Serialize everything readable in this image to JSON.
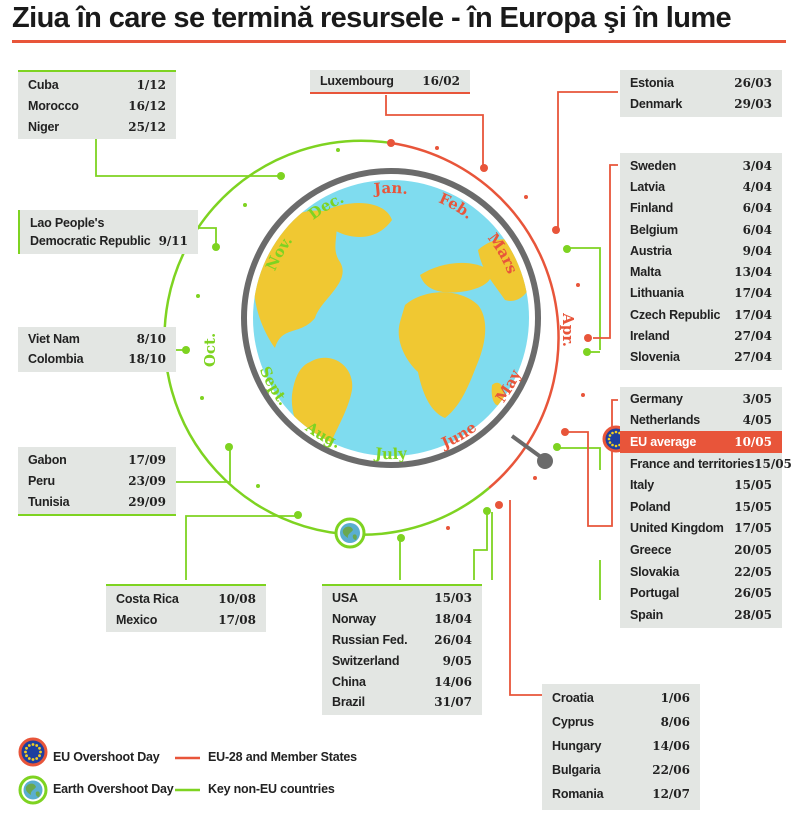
{
  "title": "Ziua în care se termină resursele - în Europa şi în lume",
  "colors": {
    "eu": "#e8553a",
    "non_eu": "#7ed321",
    "ocean": "#7fdcef",
    "land": "#f0c832",
    "panel": "#e3e6e3"
  },
  "months": [
    {
      "label": "Jan.",
      "side": "eu"
    },
    {
      "label": "Feb.",
      "side": "eu"
    },
    {
      "label": "Mars",
      "side": "eu"
    },
    {
      "label": "Apr.",
      "side": "eu"
    },
    {
      "label": "May",
      "side": "eu"
    },
    {
      "label": "June",
      "side": "eu"
    },
    {
      "label": "July",
      "side": "non_eu"
    },
    {
      "label": "Aug.",
      "side": "non_eu"
    },
    {
      "label": "Sept.",
      "side": "non_eu"
    },
    {
      "label": "Oct.",
      "side": "non_eu"
    },
    {
      "label": "Nov.",
      "side": "non_eu"
    },
    {
      "label": "Dec.",
      "side": "non_eu"
    }
  ],
  "boxes": {
    "cuba_group": [
      {
        "name": "Cuba",
        "date": "1/12"
      },
      {
        "name": "Morocco",
        "date": "16/12"
      },
      {
        "name": "Niger",
        "date": "25/12"
      }
    ],
    "luxembourg_group": [
      {
        "name": "Luxembourg",
        "date": "16/02"
      }
    ],
    "estonia_group": [
      {
        "name": "Estonia",
        "date": "26/03"
      },
      {
        "name": "Denmark",
        "date": "29/03"
      }
    ],
    "lao_group": [
      {
        "name": "Lao People's",
        "name2": "Democratic Republic",
        "date": "9/11"
      }
    ],
    "sweden_group": [
      {
        "name": "Sweden",
        "date": "3/04"
      },
      {
        "name": "Latvia",
        "date": "4/04"
      },
      {
        "name": "Finland",
        "date": "6/04"
      },
      {
        "name": "Belgium",
        "date": "6/04"
      },
      {
        "name": "Austria",
        "date": "9/04"
      },
      {
        "name": "Malta",
        "date": "13/04"
      },
      {
        "name": "Lithuania",
        "date": "17/04"
      },
      {
        "name": "Czech Republic",
        "date": "17/04"
      },
      {
        "name": "Ireland",
        "date": "27/04"
      },
      {
        "name": "Slovenia",
        "date": "27/04"
      }
    ],
    "vietnam_group": [
      {
        "name": "Viet Nam",
        "date": "8/10"
      },
      {
        "name": "Colombia",
        "date": "18/10"
      }
    ],
    "germany_group": [
      {
        "name": "Germany",
        "date": "3/05"
      },
      {
        "name": "Netherlands",
        "date": "4/05"
      },
      {
        "name": "EU average",
        "date": "10/05",
        "highlight": true
      },
      {
        "name": "France and territories",
        "date": "15/05"
      },
      {
        "name": "Italy",
        "date": "15/05"
      },
      {
        "name": "Poland",
        "date": "15/05"
      },
      {
        "name": "United Kingdom",
        "date": "17/05"
      },
      {
        "name": "Greece",
        "date": "20/05"
      },
      {
        "name": "Slovakia",
        "date": "22/05"
      },
      {
        "name": "Portugal",
        "date": "26/05"
      },
      {
        "name": "Spain",
        "date": "28/05"
      }
    ],
    "gabon_group": [
      {
        "name": "Gabon",
        "date": "17/09"
      },
      {
        "name": "Peru",
        "date": "23/09"
      },
      {
        "name": "Tunisia",
        "date": "29/09"
      }
    ],
    "costarica_group": [
      {
        "name": "Costa Rica",
        "date": "10/08"
      },
      {
        "name": "Mexico",
        "date": "17/08"
      }
    ],
    "usa_group": [
      {
        "name": "USA",
        "date": "15/03"
      },
      {
        "name": "Norway",
        "date": "18/04"
      },
      {
        "name": "Russian Fed.",
        "date": "26/04"
      },
      {
        "name": "Switzerland",
        "date": "9/05"
      },
      {
        "name": "China",
        "date": "14/06"
      },
      {
        "name": "Brazil",
        "date": "31/07"
      }
    ],
    "croatia_group": [
      {
        "name": "Croatia",
        "date": "1/06"
      },
      {
        "name": "Cyprus",
        "date": "8/06"
      },
      {
        "name": "Hungary",
        "date": "14/06"
      },
      {
        "name": "Bulgaria",
        "date": "22/06"
      },
      {
        "name": "Romania",
        "date": "12/07"
      }
    ]
  },
  "legend": {
    "eu_day": "EU Overshoot Day",
    "earth_day": "Earth Overshoot Day",
    "eu_line": "EU-28 and Member States",
    "non_eu_line": "Key non-EU countries"
  },
  "icons": {
    "eu": "eu-flag-icon",
    "earth": "earth-globe-icon"
  }
}
